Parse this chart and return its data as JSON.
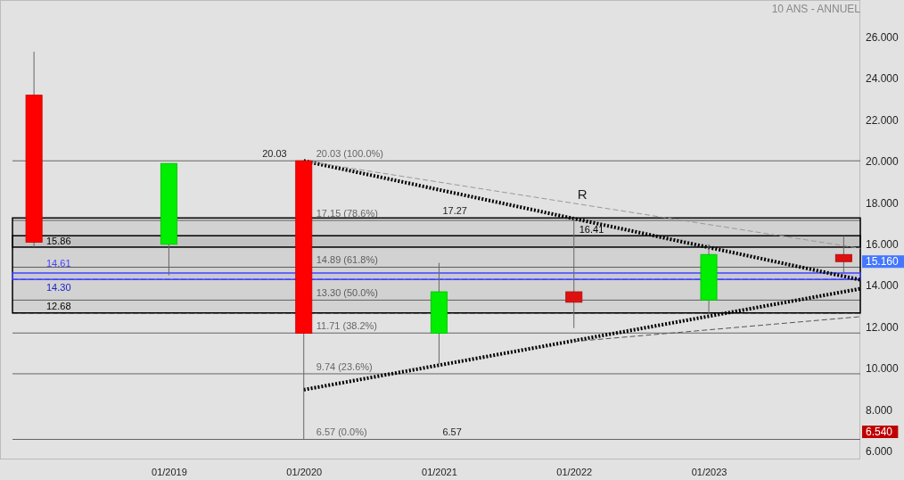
{
  "chart_data": {
    "type": "candlestick",
    "title": "10 ANS - ANNUEL",
    "x": [
      "2018-01",
      "2019-01",
      "2020-01",
      "2021-01",
      "2022-01",
      "2023-01",
      "2024-01"
    ],
    "ohlc": [
      [
        23.2,
        25.3,
        15.86,
        16.1
      ],
      [
        16.0,
        19.9,
        14.5,
        19.9
      ],
      [
        20.03,
        20.03,
        6.57,
        11.7
      ],
      [
        11.7,
        15.1,
        10.2,
        13.7
      ],
      [
        13.7,
        17.27,
        11.95,
        13.2
      ],
      [
        13.3,
        16.0,
        12.6,
        15.5
      ],
      [
        15.5,
        16.4,
        14.6,
        15.16
      ]
    ],
    "colors": [
      "#ff0000",
      "#00ee00",
      "#ff0000",
      "#00ee00",
      "#dd1111",
      "#00ee00",
      "#dd1111"
    ],
    "series": [
      {
        "type": "line",
        "x": [
          "2020-01",
          "2024-02-15"
        ],
        "values": [
          20.03,
          14.28
        ],
        "color": "#000000",
        "line_style": "dotted"
      },
      {
        "type": "line",
        "x": [
          "2020-01",
          "2024-02-15"
        ],
        "values": [
          8.97,
          13.85
        ],
        "color": "#000000",
        "line_style": "dotted"
      },
      {
        "type": "line",
        "x": [
          "2020-01",
          "2024-02-15"
        ],
        "values": [
          20.03,
          15.8
        ],
        "color": "#999999",
        "line_style": "dashed"
      },
      {
        "type": "line",
        "x": [
          "2022-01",
          "2024-02-15"
        ],
        "values": [
          11.3,
          12.5
        ],
        "color": "#555555",
        "line_style": "dashed"
      }
    ],
    "xlim": [
      "2017-10",
      "2024-02-15"
    ],
    "xticks": [
      {
        "value": "2019-01",
        "label": "01/2019"
      },
      {
        "value": "2020-01",
        "label": "01/2020"
      },
      {
        "value": "2021-01",
        "label": "01/2021"
      },
      {
        "value": "2022-01",
        "label": "01/2022"
      },
      {
        "value": "2023-01",
        "label": "01/2023"
      }
    ],
    "ylim": [
      5.6,
      27.8
    ],
    "yticks": [
      {
        "value": 6,
        "label": "6.000"
      },
      {
        "value": 8,
        "label": "8.000"
      },
      {
        "value": 10,
        "label": "10.000"
      },
      {
        "value": 12,
        "label": "12.000"
      },
      {
        "value": 14,
        "label": "14.000"
      },
      {
        "value": 16,
        "label": "16.000"
      },
      {
        "value": 18,
        "label": "18.000"
      },
      {
        "value": 20,
        "label": "20.000"
      },
      {
        "value": 22,
        "label": "22.000"
      },
      {
        "value": 24,
        "label": "24.000"
      },
      {
        "value": 26,
        "label": "26.000"
      }
    ],
    "ref_lines": [
      {
        "axis": "y",
        "value": 20.03,
        "label": "20.03  (100.0%)",
        "color": "#666666"
      },
      {
        "axis": "y",
        "value": 17.15,
        "label": "17.15  (78.6%)",
        "color": "#666666"
      },
      {
        "axis": "y",
        "value": 14.89,
        "label": "14.89  (61.8%)",
        "color": "#666666"
      },
      {
        "axis": "y",
        "value": 13.3,
        "label": "13.30  (50.0%)",
        "color": "#666666"
      },
      {
        "axis": "y",
        "value": 11.71,
        "label": "11.71  (38.2%)",
        "color": "#666666"
      },
      {
        "axis": "y",
        "value": 9.74,
        "label": "9.74  (23.6%)",
        "color": "#666666"
      },
      {
        "axis": "y",
        "value": 6.57,
        "label": "6.57  (0.0%)",
        "color": "#666666"
      },
      {
        "axis": "y",
        "value": 12.68,
        "label": "12.68",
        "color": "#000000",
        "line_style": "dashed"
      },
      {
        "axis": "y",
        "value": 14.3,
        "label": "14.30",
        "color": "#2222dd",
        "line_style": "dashed"
      }
    ],
    "bands": [
      {
        "axis": "y",
        "from": 15.86,
        "to": 17.27,
        "label": "15.86",
        "color": "#000000"
      },
      {
        "axis": "y",
        "from": 12.68,
        "to": 16.41,
        "label": "16.41",
        "color": "#000000"
      },
      {
        "axis": "y",
        "from": 14.3,
        "to": 14.61,
        "label": "14.61",
        "color": "#4444ff"
      }
    ],
    "annotations": [
      {
        "text": "17.27",
        "x": "2021-01",
        "y": 17.27
      },
      {
        "text": "R",
        "x": "2022-01",
        "y": 18.0
      },
      {
        "text": "20.03",
        "x": "2019-09",
        "y": 20.03
      },
      {
        "text": "6.57",
        "x": "2021-01",
        "y": 6.57
      },
      {
        "text": "15.160",
        "x": "2024-01",
        "y": 15.16
      },
      "6.540"
    ],
    "grid": false
  }
}
